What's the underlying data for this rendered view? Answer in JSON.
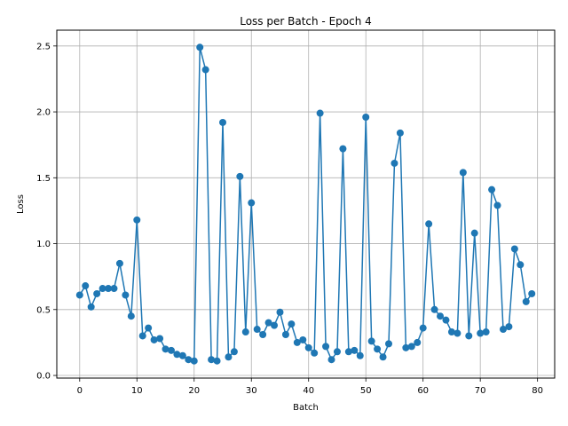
{
  "chart_data": {
    "type": "line",
    "title": "Loss per Batch - Epoch 4",
    "xlabel": "Batch",
    "ylabel": "Loss",
    "xlim": [
      -4,
      83
    ],
    "ylim": [
      -0.02,
      2.62
    ],
    "x_ticks": [
      0,
      10,
      20,
      30,
      40,
      50,
      60,
      70,
      80
    ],
    "y_ticks": [
      0.0,
      0.5,
      1.0,
      1.5,
      2.0,
      2.5
    ],
    "y_tick_labels": [
      "0.0",
      "0.5",
      "1.0",
      "1.5",
      "2.0",
      "2.5"
    ],
    "grid": true,
    "color": "#1f77b4",
    "series": [
      {
        "x": [
          0,
          1,
          2,
          3,
          4,
          5,
          6,
          7,
          8,
          9,
          10,
          11,
          12,
          13,
          14,
          15,
          16,
          17,
          18,
          19,
          20,
          21,
          22,
          23,
          24,
          25,
          26,
          27,
          28,
          29,
          30,
          31,
          32,
          33,
          34,
          35,
          36,
          37,
          38,
          39,
          40,
          41,
          42,
          43,
          44,
          45,
          46,
          47,
          48,
          49,
          50,
          51,
          52,
          53,
          54,
          55,
          56,
          57,
          58,
          59,
          60,
          61,
          62,
          63,
          64,
          65,
          66,
          67,
          68,
          69,
          70,
          71,
          72,
          73,
          74,
          75,
          76,
          77,
          78,
          79
        ],
        "values": [
          0.61,
          0.68,
          0.52,
          0.62,
          0.66,
          0.66,
          0.66,
          0.85,
          0.61,
          0.45,
          1.18,
          0.3,
          0.36,
          0.27,
          0.28,
          0.2,
          0.19,
          0.16,
          0.15,
          0.12,
          0.11,
          2.49,
          2.32,
          0.12,
          0.11,
          1.92,
          0.14,
          0.18,
          1.51,
          0.33,
          1.31,
          0.35,
          0.31,
          0.4,
          0.38,
          0.48,
          0.31,
          0.39,
          0.25,
          0.27,
          0.21,
          0.17,
          1.99,
          0.22,
          0.12,
          0.18,
          1.72,
          0.18,
          0.19,
          0.15,
          1.96,
          0.26,
          0.2,
          0.14,
          0.24,
          1.61,
          1.84,
          0.21,
          0.22,
          0.25,
          0.36,
          1.15,
          0.5,
          0.45,
          0.42,
          0.33,
          0.32,
          1.54,
          0.3,
          1.08,
          0.32,
          0.33,
          1.41,
          1.29,
          0.35,
          0.37,
          0.96,
          0.84,
          0.56,
          0.62
        ]
      }
    ]
  }
}
